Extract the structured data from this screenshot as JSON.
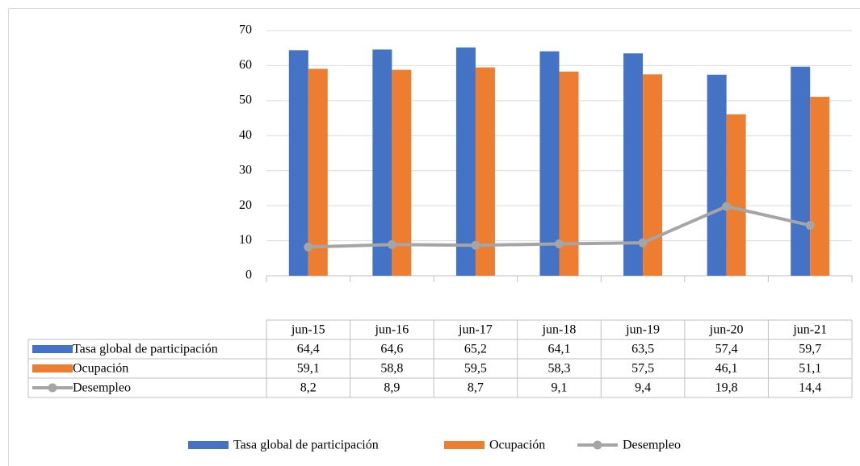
{
  "chart_data": {
    "type": "bar-line-table",
    "categories": [
      "jun-15",
      "jun-16",
      "jun-17",
      "jun-18",
      "jun-19",
      "jun-20",
      "jun-21"
    ],
    "series": [
      {
        "name": "Tasa global de participación",
        "type": "bar",
        "color": "#4472c4",
        "values": [
          64.4,
          64.6,
          65.2,
          64.1,
          63.5,
          57.4,
          59.7
        ],
        "value_labels": [
          "64,4",
          "64,6",
          "65,2",
          "64,1",
          "63,5",
          "57,4",
          "59,7"
        ]
      },
      {
        "name": "Ocupación",
        "type": "bar",
        "color": "#ed7d31",
        "values": [
          59.1,
          58.8,
          59.5,
          58.3,
          57.5,
          46.1,
          51.1
        ],
        "value_labels": [
          "59,1",
          "58,8",
          "59,5",
          "58,3",
          "57,5",
          "46,1",
          "51,1"
        ]
      },
      {
        "name": "Desempleo",
        "type": "line",
        "color": "#a5a5a5",
        "values": [
          8.2,
          8.9,
          8.7,
          9.1,
          9.4,
          19.8,
          14.4
        ],
        "value_labels": [
          "8,2",
          "8,9",
          "8,7",
          "9,1",
          "9,4",
          "19,8",
          "14,4"
        ]
      }
    ],
    "ylim": [
      0,
      70
    ],
    "yticks": [
      0,
      10,
      20,
      30,
      40,
      50,
      60,
      70
    ],
    "grid": true,
    "legend": "bottom"
  }
}
